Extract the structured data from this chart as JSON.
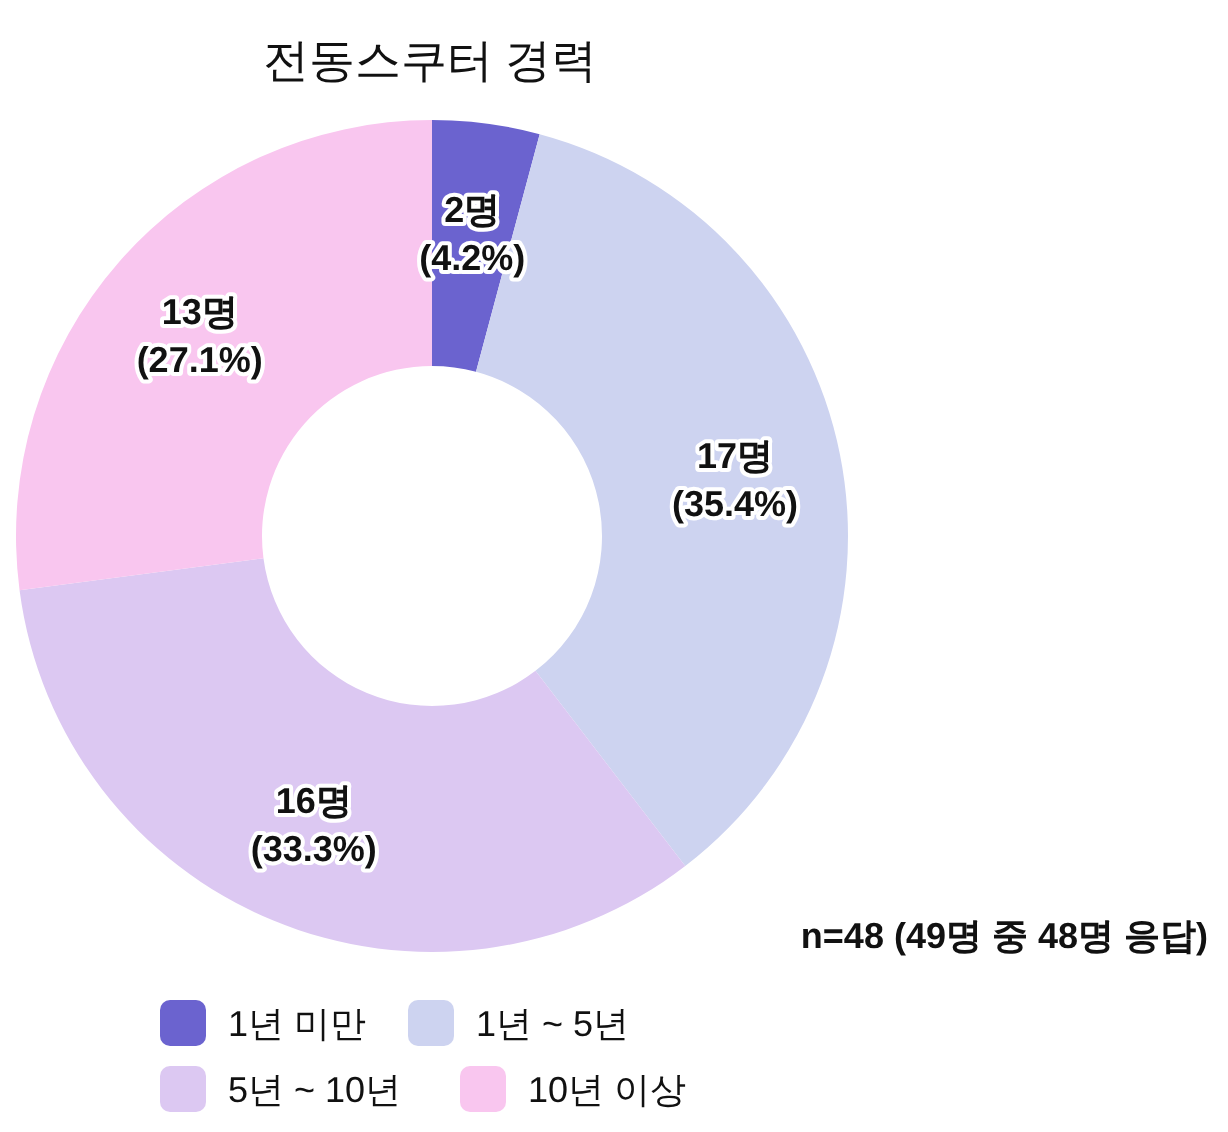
{
  "chart_data": {
    "type": "donut",
    "title": "전동스쿠터 경력",
    "categories": [
      "1년 미만",
      "1년 ~ 5년",
      "5년 ~ 10년",
      "10년 이상"
    ],
    "values": [
      2,
      17,
      16,
      13
    ],
    "colors": [
      "#6b63cf",
      "#cdd3f0",
      "#dcc8f2",
      "#f9c6ef"
    ],
    "value_labels": [
      "2명 (4.2%)",
      "17명 (35.4%)",
      "16명 (33.3%)",
      "13명 (27.1%)"
    ],
    "annotations": [
      "n=48 (49명 중 48명 응답)"
    ],
    "legend": "bottom"
  }
}
